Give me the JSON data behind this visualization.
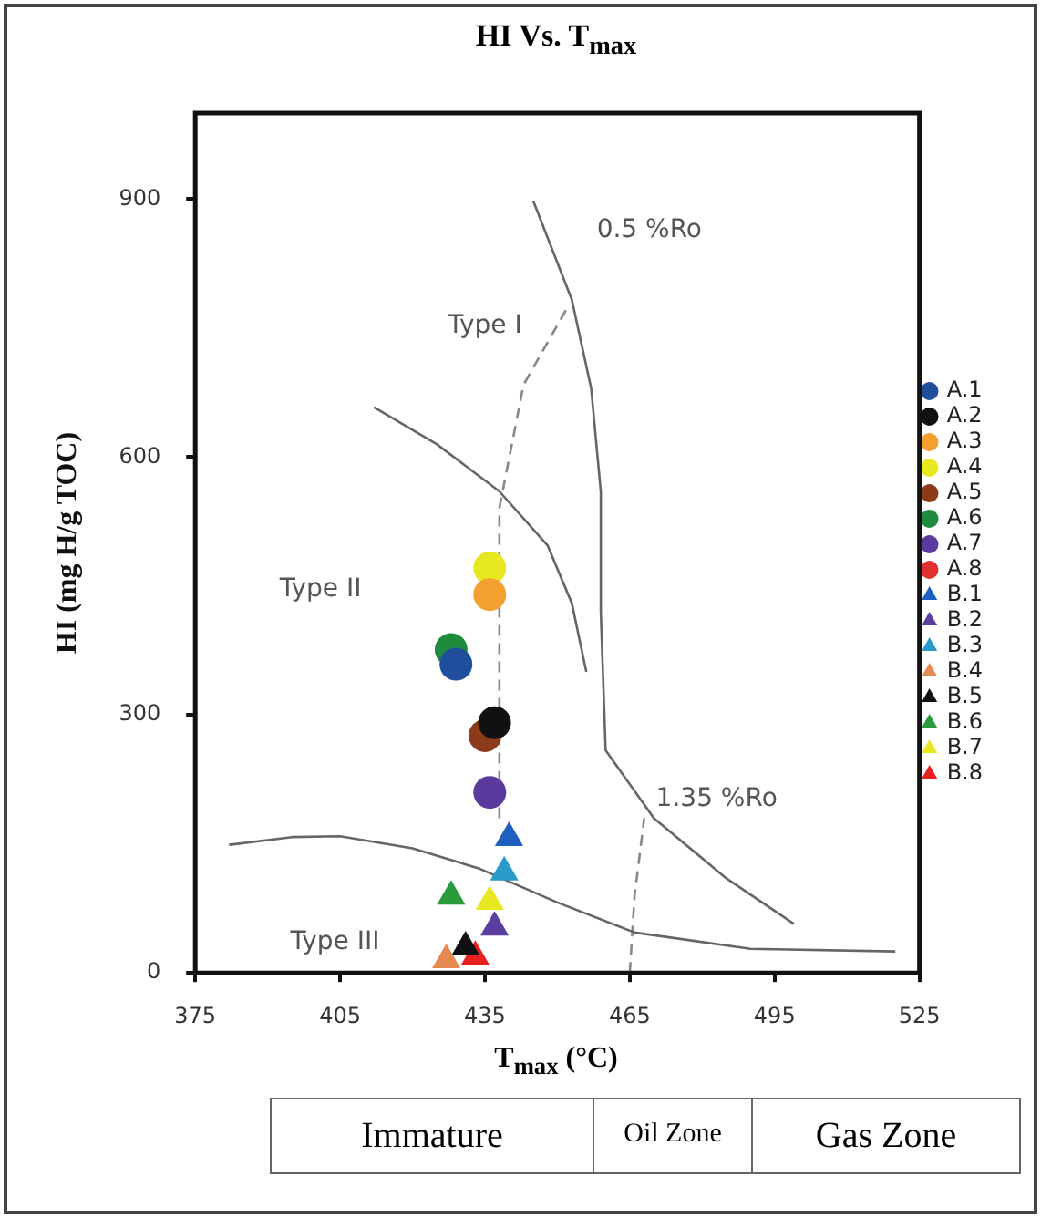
{
  "chart_data": {
    "type": "scatter",
    "title": "HI Vs. T$_{max}$",
    "xlabel": "T$_{max}$ (°C)",
    "ylabel": "HI (mg H/g TOC)",
    "xlim": [
      375,
      525
    ],
    "xticks": [
      375,
      405,
      435,
      465,
      495,
      525
    ],
    "ylim": [
      0,
      1000
    ],
    "yticks": [
      0,
      300,
      600,
      900
    ],
    "grid": false,
    "legend": "right",
    "annotations": [
      "Type I",
      "Type II",
      "Type III",
      "0.5 %Ro",
      "1.35 %Ro",
      "Immature",
      "Oil Zone",
      "Gas Zone"
    ],
    "series": [
      {
        "type": "line",
        "color": "#666666",
        "line_style": "solid",
        "marker": "none",
        "x": [
          445,
          453,
          457,
          459,
          459,
          460,
          470,
          485,
          499
        ],
        "values": [
          898,
          783,
          680,
          560,
          420,
          259,
          180,
          110,
          57
        ]
      },
      {
        "type": "line",
        "color": "#666666",
        "line_style": "solid",
        "marker": "none",
        "x": [
          412,
          425,
          438,
          448,
          453,
          456
        ],
        "values": [
          658,
          615,
          560,
          497,
          430,
          350
        ]
      },
      {
        "type": "line",
        "color": "#666666",
        "line_style": "solid",
        "marker": "none",
        "x": [
          382,
          395,
          405,
          420,
          434,
          450,
          466,
          490,
          520
        ],
        "values": [
          149,
          158,
          159,
          145,
          121,
          82,
          47,
          28,
          25
        ]
      },
      {
        "type": "line",
        "color": "#888888",
        "line_style": "dashed",
        "marker": "none",
        "x": [
          438,
          438,
          438,
          443,
          452
        ],
        "values": [
          180,
          400,
          541,
          684,
          773
        ]
      },
      {
        "type": "line",
        "color": "#888888",
        "line_style": "dashed",
        "marker": "none",
        "x": [
          465,
          466,
          468
        ],
        "values": [
          0,
          90,
          180
        ]
      },
      {
        "name": "A.1",
        "color": "#1f4e9c",
        "marker": "circle",
        "x": [
          429
        ],
        "values": [
          359
        ]
      },
      {
        "name": "A.2",
        "color": "#111111",
        "marker": "circle",
        "x": [
          437
        ],
        "values": [
          291
        ]
      },
      {
        "name": "A.3",
        "color": "#f4a030",
        "marker": "circle",
        "x": [
          436
        ],
        "values": [
          440
        ]
      },
      {
        "name": "A.4",
        "color": "#e8e820",
        "marker": "circle",
        "x": [
          436
        ],
        "values": [
          471
        ]
      },
      {
        "name": "A.5",
        "color": "#8b3a1a",
        "marker": "circle",
        "x": [
          435
        ],
        "values": [
          276
        ]
      },
      {
        "name": "A.6",
        "color": "#1e8c3c",
        "marker": "circle",
        "x": [
          428
        ],
        "values": [
          376
        ]
      },
      {
        "name": "A.7",
        "color": "#5b3a9e",
        "marker": "circle",
        "x": [
          436
        ],
        "values": [
          210
        ]
      },
      {
        "name": "A.8",
        "color": "#e03030",
        "marker": "circle",
        "x": [
          null
        ],
        "values": [
          null
        ]
      },
      {
        "name": "B.1",
        "color": "#1f5fbf",
        "marker": "triangle",
        "x": [
          440
        ],
        "values": [
          157
        ]
      },
      {
        "name": "B.2",
        "color": "#5a3f9e",
        "marker": "triangle",
        "x": [
          437
        ],
        "values": [
          53
        ]
      },
      {
        "name": "B.3",
        "color": "#2a9ac8",
        "marker": "triangle",
        "x": [
          439
        ],
        "values": [
          117
        ]
      },
      {
        "name": "B.4",
        "color": "#e58a50",
        "marker": "triangle",
        "x": [
          427
        ],
        "values": [
          15
        ]
      },
      {
        "name": "B.5",
        "color": "#111111",
        "marker": "triangle",
        "x": [
          431
        ],
        "values": [
          30
        ]
      },
      {
        "name": "B.6",
        "color": "#2a9a3a",
        "marker": "triangle",
        "x": [
          428
        ],
        "values": [
          89
        ]
      },
      {
        "name": "B.7",
        "color": "#e8e820",
        "marker": "triangle",
        "x": [
          436
        ],
        "values": [
          83
        ]
      },
      {
        "name": "B.8",
        "color": "#e82020",
        "marker": "triangle",
        "x": [
          433
        ],
        "values": [
          19
        ]
      }
    ]
  }
}
